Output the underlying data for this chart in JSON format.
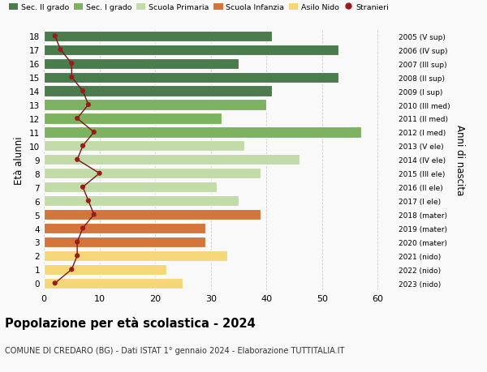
{
  "ages": [
    18,
    17,
    16,
    15,
    14,
    13,
    12,
    11,
    10,
    9,
    8,
    7,
    6,
    5,
    4,
    3,
    2,
    1,
    0
  ],
  "bar_values": [
    41,
    53,
    35,
    53,
    41,
    40,
    32,
    57,
    36,
    46,
    39,
    31,
    35,
    39,
    29,
    29,
    33,
    22,
    25
  ],
  "bar_colors": [
    "#4a7c4e",
    "#4a7c4e",
    "#4a7c4e",
    "#4a7c4e",
    "#4a7c4e",
    "#7db360",
    "#7db360",
    "#7db360",
    "#c2dba8",
    "#c2dba8",
    "#c2dba8",
    "#c2dba8",
    "#c2dba8",
    "#d4763b",
    "#d4763b",
    "#d4763b",
    "#f5d77a",
    "#f5d77a",
    "#f5d77a"
  ],
  "stranieri_values": [
    2,
    3,
    5,
    5,
    7,
    8,
    6,
    9,
    7,
    6,
    10,
    7,
    8,
    9,
    7,
    6,
    6,
    5,
    2
  ],
  "right_labels": [
    "2005 (V sup)",
    "2006 (IV sup)",
    "2007 (III sup)",
    "2008 (II sup)",
    "2009 (I sup)",
    "2010 (III med)",
    "2011 (II med)",
    "2012 (I med)",
    "2013 (V ele)",
    "2014 (IV ele)",
    "2015 (III ele)",
    "2016 (II ele)",
    "2017 (I ele)",
    "2018 (mater)",
    "2019 (mater)",
    "2020 (mater)",
    "2021 (nido)",
    "2022 (nido)",
    "2023 (nido)"
  ],
  "legend_labels": [
    "Sec. II grado",
    "Sec. I grado",
    "Scuola Primaria",
    "Scuola Infanzia",
    "Asilo Nido",
    "Stranieri"
  ],
  "legend_colors": [
    "#4a7c4e",
    "#7db360",
    "#c2dba8",
    "#d4763b",
    "#f5d77a",
    "#9b1c1c"
  ],
  "ylabel": "Età alunni",
  "right_ylabel": "Anni di nascita",
  "title": "Popolazione per età scolastica - 2024",
  "subtitle": "COMUNE DI CREDARO (BG) - Dati ISTAT 1° gennaio 2024 - Elaborazione TUTTITALIA.IT",
  "xlim": [
    0,
    63
  ],
  "background_color": "#f9f9f9",
  "grid_color": "#cccccc"
}
